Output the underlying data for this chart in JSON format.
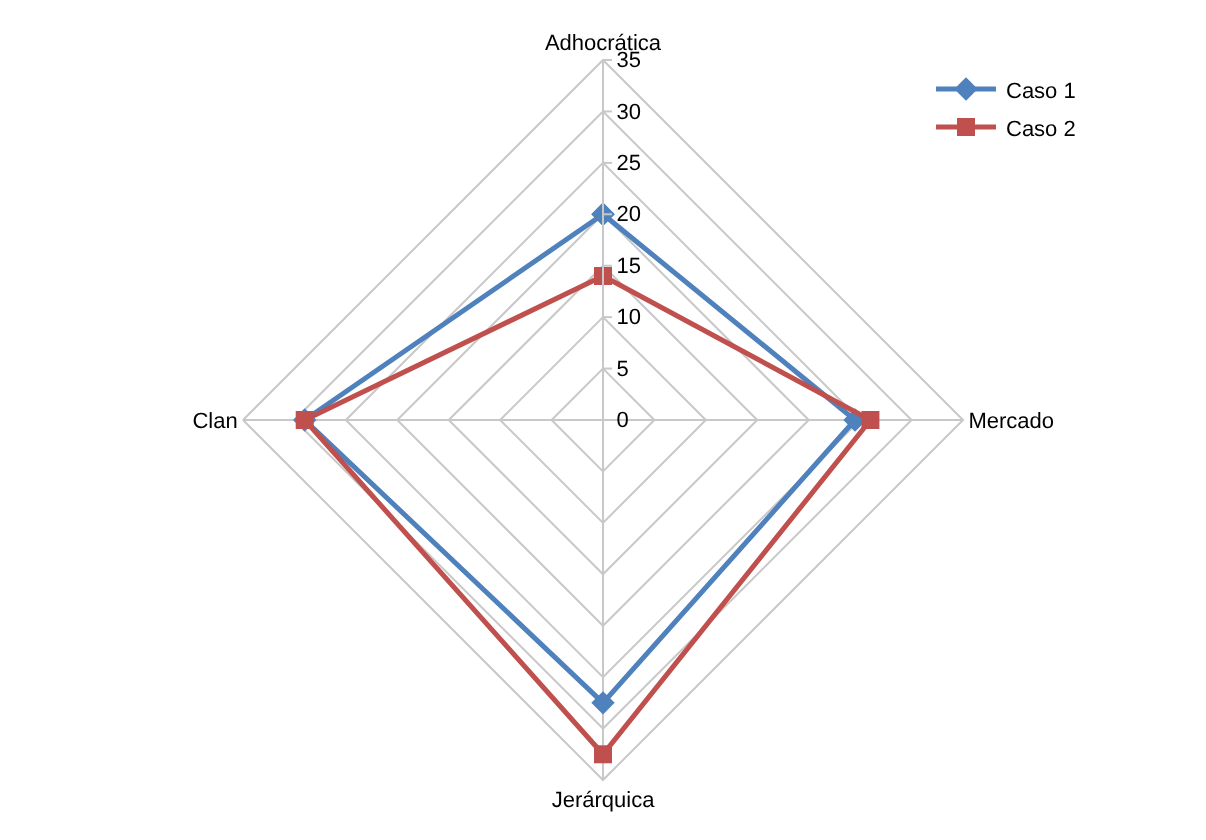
{
  "chart_data": {
    "type": "radar",
    "categories": [
      "Adhocrática",
      "Mercado",
      "Jerárquica",
      "Clan"
    ],
    "series": [
      {
        "name": "Caso 1",
        "color": "#4f81bd",
        "marker": "diamond",
        "values": [
          20,
          24.5,
          27.5,
          29
        ]
      },
      {
        "name": "Caso 2",
        "color": "#c0504d",
        "marker": "square",
        "values": [
          14,
          26,
          32.5,
          29
        ]
      }
    ],
    "ylim": [
      0,
      35
    ],
    "yticks": [
      0,
      5,
      10,
      15,
      20,
      25,
      30,
      35
    ],
    "grid": true,
    "legend": "top right",
    "line_style": "solid"
  }
}
